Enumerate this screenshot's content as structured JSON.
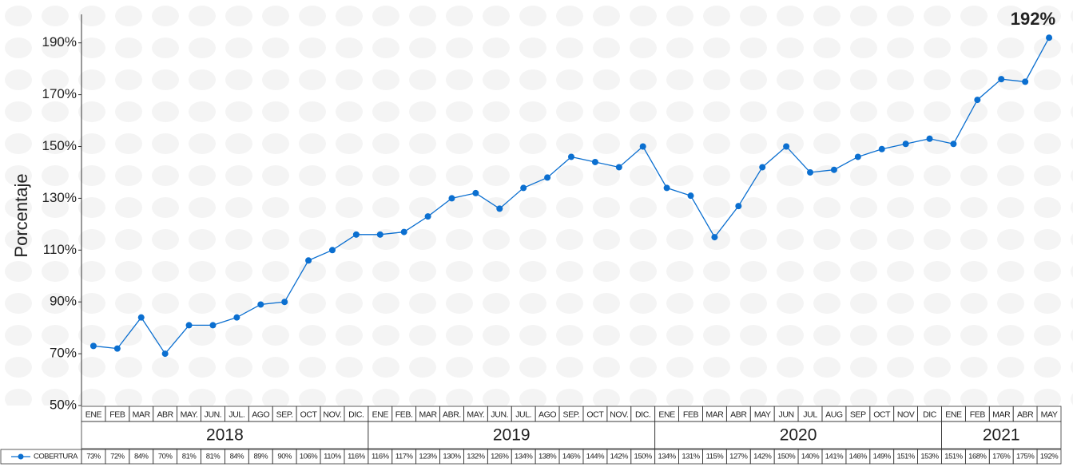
{
  "chart_data": {
    "type": "line",
    "ylabel": "Porcentaje",
    "ylim": [
      50,
      201
    ],
    "yticks": [
      {
        "value": 50,
        "label": "50%"
      },
      {
        "value": 70,
        "label": "70%"
      },
      {
        "value": 90,
        "label": "90%"
      },
      {
        "value": 110,
        "label": "110%"
      },
      {
        "value": 130,
        "label": "130%"
      },
      {
        "value": 150,
        "label": "150%"
      },
      {
        "value": 170,
        "label": "170%"
      },
      {
        "value": 190,
        "label": "190%"
      }
    ],
    "groups": [
      {
        "label": "2018",
        "categories": [
          "ENE",
          "FEB",
          "MAR",
          "ABR",
          "MAY.",
          "JUN.",
          "JUL.",
          "AGO",
          "SEP.",
          "OCT",
          "NOV.",
          "DIC."
        ]
      },
      {
        "label": "2019",
        "categories": [
          "ENE",
          "FEB.",
          "MAR",
          "ABR.",
          "MAY.",
          "JUN.",
          "JUL.",
          "AGO",
          "SEP.",
          "OCT",
          "NOV.",
          "DIC."
        ]
      },
      {
        "label": "2020",
        "categories": [
          "ENE",
          "FEB",
          "MAR",
          "ABR",
          "MAY",
          "JUN",
          "JUL",
          "AUG",
          "SEP",
          "OCT",
          "NOV",
          "DIC"
        ]
      },
      {
        "label": "2021",
        "categories": [
          "ENE",
          "FEB",
          "MAR",
          "ABR",
          "MAY"
        ]
      }
    ],
    "series": [
      {
        "name": "COBERTURA",
        "color": "#0b6fd0",
        "values": [
          73,
          72,
          84,
          70,
          81,
          81,
          84,
          89,
          90,
          106,
          110,
          116,
          116,
          117,
          123,
          130,
          132,
          126,
          134,
          138,
          146,
          144,
          142,
          150,
          134,
          131,
          115,
          127,
          142,
          150,
          140,
          141,
          146,
          149,
          151,
          153,
          151,
          168,
          176,
          175,
          192
        ],
        "value_labels": [
          "73%",
          "72%",
          "84%",
          "70%",
          "81%",
          "81%",
          "84%",
          "89%",
          "90%",
          "106%",
          "110%",
          "116%",
          "116%",
          "117%",
          "123%",
          "130%",
          "132%",
          "126%",
          "134%",
          "138%",
          "146%",
          "144%",
          "142%",
          "150%",
          "134%",
          "131%",
          "115%",
          "127%",
          "142%",
          "150%",
          "140%",
          "141%",
          "146%",
          "149%",
          "151%",
          "153%",
          "151%",
          "168%",
          "176%",
          "175%",
          "192%"
        ]
      }
    ]
  }
}
